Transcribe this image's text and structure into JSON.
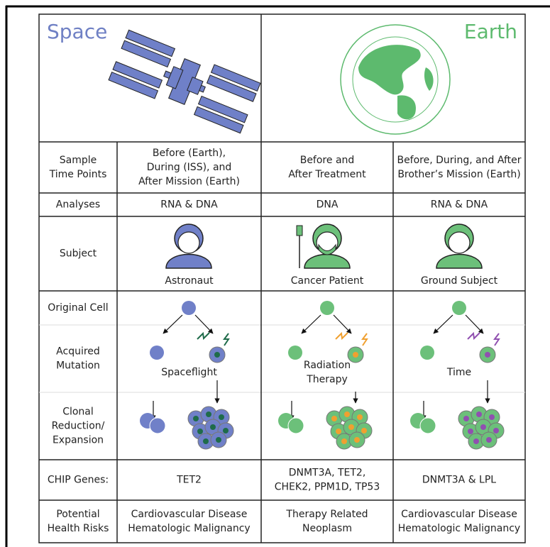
{
  "header": {
    "left": "Space",
    "right": "Earth"
  },
  "rows": [
    {
      "label": [
        "Sample",
        "Time Points"
      ],
      "cells": [
        [
          "Before (Earth),",
          "During (ISS), and",
          "After Mission (Earth)"
        ],
        [
          "Before and",
          "After Treatment"
        ],
        [
          "Before, During, and After",
          "Brother’s Mission (Earth)"
        ]
      ]
    },
    {
      "label": [
        "Analyses"
      ],
      "cells": [
        [
          "RNA & DNA"
        ],
        [
          "DNA"
        ],
        [
          "RNA & DNA"
        ]
      ]
    },
    {
      "label": [
        "Subject"
      ],
      "cells": [
        [
          "Astronaut"
        ],
        [
          "Cancer Patient"
        ],
        [
          "Ground Subject"
        ]
      ]
    },
    {
      "label": [
        "Original Cell"
      ]
    },
    {
      "label": [
        "Acquired",
        "Mutation"
      ],
      "cells": [
        [
          "Spaceflight"
        ],
        [
          "Radiation",
          "Therapy"
        ],
        [
          "Time"
        ]
      ]
    },
    {
      "label": [
        "Clonal",
        "Reduction/",
        "Expansion"
      ]
    },
    {
      "label": [
        "CHIP Genes:"
      ],
      "cells": [
        [
          "TET2"
        ],
        [
          "DNMT3A, TET2,",
          "CHEK2, PPM1D, TP53"
        ],
        [
          "DNMT3A & LPL"
        ]
      ]
    },
    {
      "label": [
        "Potential",
        "Health Risks"
      ],
      "cells": [
        [
          "Cardiovascular Disease",
          "Hematologic Malignancy"
        ],
        [
          "Therapy Related",
          "Neoplasm"
        ],
        [
          "Cardiovascular Disease",
          "Hematologic Malignancy"
        ]
      ]
    }
  ]
}
